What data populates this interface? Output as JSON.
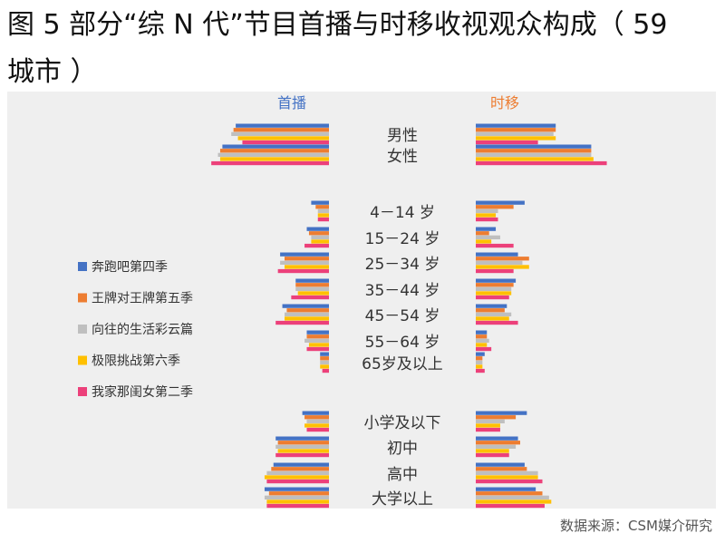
{
  "title": "图 5 部分“综 N 代”节目首播与时移收视观众构成（ 59 城市 ）",
  "title_lines": [
    "图 5 部分“综 N 代”节目首播与时移收视观众构成（ 59",
    "城市 ）"
  ],
  "source": "数据来源：CSM媒介研究",
  "colors": {
    "series": [
      "#4472c4",
      "#ed7d31",
      "#bfbfbf",
      "#ffc000",
      "#ec407a"
    ],
    "left_header": "#4472c4",
    "right_header": "#ed7d31"
  },
  "chart_data": {
    "type": "bar",
    "orientation": "horizontal-butterfly",
    "panels": [
      "首播",
      "时移"
    ],
    "categories": [
      "男性",
      "女性",
      "4－14 岁",
      "15－24 岁",
      "25－34 岁",
      "35－44 岁",
      "45－54 岁",
      "55－64 岁",
      "65岁及以上",
      "小学及以下",
      "初中",
      "高中",
      "大学以上"
    ],
    "groups": [
      [
        "男性",
        "女性"
      ],
      [
        "4－14 岁",
        "15－24 岁",
        "25－34 岁",
        "35－44 岁",
        "45－54 岁",
        "55－64 岁",
        "65岁及以上"
      ],
      [
        "小学及以下",
        "初中",
        "高中",
        "大学以上"
      ]
    ],
    "series": [
      {
        "name": "奔跑吧第四季",
        "first_run": [
          42,
          48,
          8,
          10,
          22,
          15,
          21,
          10,
          4,
          12,
          24,
          25,
          29
        ],
        "time_shift": [
          36,
          52,
          22,
          9,
          19,
          18,
          14,
          5,
          4,
          23,
          19,
          22,
          27
        ]
      },
      {
        "name": "王牌对王牌第五季",
        "first_run": [
          43,
          49,
          6,
          9,
          20,
          15,
          19,
          10,
          4,
          11,
          23,
          26,
          27
        ],
        "time_shift": [
          36,
          52,
          17,
          6,
          24,
          17,
          13,
          5,
          3,
          18,
          20,
          23,
          30
        ]
      },
      {
        "name": "向往的生活彩云篇",
        "first_run": [
          44,
          50,
          5,
          8,
          22,
          15,
          20,
          11,
          4,
          10,
          24,
          28,
          29
        ],
        "time_shift": [
          35,
          52,
          10,
          11,
          21,
          16,
          16,
          6,
          3,
          13,
          18,
          28,
          33
        ]
      },
      {
        "name": "极限挑战第六季",
        "first_run": [
          41,
          49,
          5,
          8,
          20,
          14,
          20,
          9,
          4,
          11,
          23,
          29,
          28
        ],
        "time_shift": [
          36,
          53,
          9,
          7,
          24,
          16,
          15,
          5,
          3,
          11,
          15,
          28,
          34
        ]
      },
      {
        "name": "我家那闺女第二季",
        "first_run": [
          39,
          53,
          5,
          11,
          23,
          17,
          24,
          10,
          3,
          10,
          24,
          28,
          28
        ],
        "time_shift": [
          28,
          59,
          10,
          17,
          17,
          15,
          19,
          7,
          4,
          11,
          15,
          30,
          31
        ]
      }
    ],
    "legend_position": "left",
    "grid": false
  }
}
